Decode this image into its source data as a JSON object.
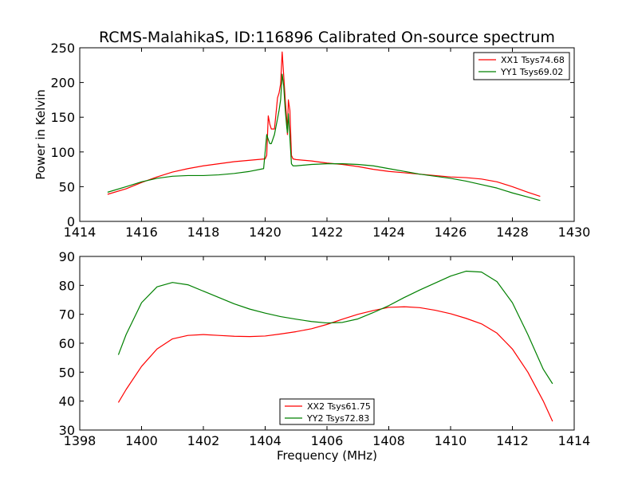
{
  "figure": {
    "title": "RCMS-MalahikaS, ID:116896 Calibrated On-source spectrum"
  },
  "chart_data": [
    {
      "type": "line",
      "title": "RCMS-MalahikaS, ID:116896 Calibrated On-source spectrum",
      "xlabel": "",
      "ylabel": "Power in Kelvin",
      "xlim": [
        1414,
        1430
      ],
      "ylim": [
        0,
        250
      ],
      "xticks": [
        1414,
        1416,
        1418,
        1420,
        1422,
        1424,
        1426,
        1428,
        1430
      ],
      "yticks": [
        0,
        50,
        100,
        150,
        200,
        250
      ],
      "grid": false,
      "legend_position": "top-right",
      "series": [
        {
          "name": "XX1 Tsys74.68",
          "color": "#ff0000",
          "points": [
            [
              1414.9,
              39
            ],
            [
              1415.5,
              47
            ],
            [
              1416.0,
              56
            ],
            [
              1416.5,
              64
            ],
            [
              1417.0,
              71
            ],
            [
              1417.5,
              76
            ],
            [
              1418.0,
              80
            ],
            [
              1418.5,
              83
            ],
            [
              1419.0,
              86
            ],
            [
              1419.5,
              88
            ],
            [
              1420.0,
              90
            ],
            [
              1420.05,
              95
            ],
            [
              1420.1,
              152
            ],
            [
              1420.15,
              140
            ],
            [
              1420.2,
              133
            ],
            [
              1420.3,
              133
            ],
            [
              1420.35,
              155
            ],
            [
              1420.4,
              178
            ],
            [
              1420.45,
              185
            ],
            [
              1420.5,
              198
            ],
            [
              1420.55,
              244
            ],
            [
              1420.6,
              210
            ],
            [
              1420.65,
              175
            ],
            [
              1420.7,
              145
            ],
            [
              1420.72,
              125
            ],
            [
              1420.75,
              175
            ],
            [
              1420.8,
              160
            ],
            [
              1420.85,
              95
            ],
            [
              1420.9,
              90
            ],
            [
              1421.0,
              89
            ],
            [
              1421.5,
              87
            ],
            [
              1422.0,
              84
            ],
            [
              1422.5,
              82
            ],
            [
              1423.0,
              79
            ],
            [
              1423.5,
              75
            ],
            [
              1424.0,
              72
            ],
            [
              1424.5,
              70
            ],
            [
              1425.0,
              68
            ],
            [
              1425.5,
              66
            ],
            [
              1426.0,
              64
            ],
            [
              1426.5,
              63
            ],
            [
              1427.0,
              61
            ],
            [
              1427.5,
              57
            ],
            [
              1428.0,
              50
            ],
            [
              1428.5,
              42
            ],
            [
              1428.9,
              36
            ]
          ]
        },
        {
          "name": "YY1 Tsys69.02",
          "color": "#008000",
          "points": [
            [
              1414.9,
              42
            ],
            [
              1415.5,
              50
            ],
            [
              1416.0,
              57
            ],
            [
              1416.5,
              62
            ],
            [
              1417.0,
              65
            ],
            [
              1417.5,
              66
            ],
            [
              1418.0,
              66
            ],
            [
              1418.5,
              67
            ],
            [
              1419.0,
              69
            ],
            [
              1419.5,
              72
            ],
            [
              1419.95,
              76
            ],
            [
              1420.05,
              125
            ],
            [
              1420.1,
              118
            ],
            [
              1420.15,
              112
            ],
            [
              1420.2,
              112
            ],
            [
              1420.3,
              125
            ],
            [
              1420.4,
              148
            ],
            [
              1420.45,
              160
            ],
            [
              1420.5,
              175
            ],
            [
              1420.55,
              212
            ],
            [
              1420.6,
              195
            ],
            [
              1420.65,
              160
            ],
            [
              1420.7,
              135
            ],
            [
              1420.72,
              128
            ],
            [
              1420.75,
              155
            ],
            [
              1420.8,
              120
            ],
            [
              1420.85,
              83
            ],
            [
              1420.9,
              80
            ],
            [
              1421.0,
              80
            ],
            [
              1421.5,
              82
            ],
            [
              1422.0,
              83
            ],
            [
              1422.5,
              83
            ],
            [
              1423.0,
              82
            ],
            [
              1423.5,
              80
            ],
            [
              1424.0,
              76
            ],
            [
              1424.5,
              72
            ],
            [
              1425.0,
              68
            ],
            [
              1425.5,
              65
            ],
            [
              1426.0,
              62
            ],
            [
              1426.5,
              58
            ],
            [
              1427.0,
              53
            ],
            [
              1427.5,
              48
            ],
            [
              1428.0,
              41
            ],
            [
              1428.5,
              35
            ],
            [
              1428.9,
              30
            ]
          ]
        }
      ]
    },
    {
      "type": "line",
      "title": "",
      "xlabel": "Frequency (MHz)",
      "ylabel": "",
      "xlim": [
        1398,
        1414
      ],
      "ylim": [
        30,
        90
      ],
      "xticks": [
        1398,
        1400,
        1402,
        1404,
        1406,
        1408,
        1410,
        1412,
        1414
      ],
      "yticks": [
        30,
        40,
        50,
        60,
        70,
        80,
        90
      ],
      "grid": false,
      "legend_position": "bottom-center",
      "series": [
        {
          "name": "XX2 Tsys61.75",
          "color": "#ff0000",
          "points": [
            [
              1399.25,
              39.5
            ],
            [
              1399.5,
              44
            ],
            [
              1400.0,
              52
            ],
            [
              1400.5,
              58
            ],
            [
              1401.0,
              61.5
            ],
            [
              1401.5,
              62.7
            ],
            [
              1402.0,
              63
            ],
            [
              1402.5,
              62.7
            ],
            [
              1403.0,
              62.4
            ],
            [
              1403.5,
              62.3
            ],
            [
              1404.0,
              62.5
            ],
            [
              1404.5,
              63.2
            ],
            [
              1405.0,
              64
            ],
            [
              1405.5,
              65
            ],
            [
              1406.0,
              66.5
            ],
            [
              1406.5,
              68.3
            ],
            [
              1407.0,
              70
            ],
            [
              1407.5,
              71.3
            ],
            [
              1408.0,
              72.4
            ],
            [
              1408.5,
              72.6
            ],
            [
              1409.0,
              72.3
            ],
            [
              1409.5,
              71.4
            ],
            [
              1410.0,
              70.2
            ],
            [
              1410.5,
              68.6
            ],
            [
              1411.0,
              66.7
            ],
            [
              1411.5,
              63.5
            ],
            [
              1412.0,
              58
            ],
            [
              1412.5,
              50
            ],
            [
              1413.0,
              40
            ],
            [
              1413.3,
              33
            ]
          ]
        },
        {
          "name": "YY2 Tsys72.83",
          "color": "#008000",
          "points": [
            [
              1399.25,
              56
            ],
            [
              1399.5,
              63
            ],
            [
              1400.0,
              74
            ],
            [
              1400.5,
              79.5
            ],
            [
              1401.0,
              81
            ],
            [
              1401.5,
              80.2
            ],
            [
              1402.0,
              78
            ],
            [
              1402.5,
              75.8
            ],
            [
              1403.0,
              73.6
            ],
            [
              1403.5,
              71.8
            ],
            [
              1404.0,
              70.4
            ],
            [
              1404.5,
              69.2
            ],
            [
              1405.0,
              68.3
            ],
            [
              1405.5,
              67.5
            ],
            [
              1406.0,
              67
            ],
            [
              1406.5,
              67.2
            ],
            [
              1407.0,
              68.4
            ],
            [
              1407.5,
              70.6
            ],
            [
              1408.0,
              73
            ],
            [
              1408.5,
              75.8
            ],
            [
              1409.0,
              78.4
            ],
            [
              1409.5,
              80.8
            ],
            [
              1410.0,
              83.2
            ],
            [
              1410.5,
              84.9
            ],
            [
              1411.0,
              84.6
            ],
            [
              1411.5,
              81.3
            ],
            [
              1412.0,
              74
            ],
            [
              1412.5,
              63
            ],
            [
              1413.0,
              51
            ],
            [
              1413.3,
              46
            ]
          ]
        }
      ]
    }
  ]
}
